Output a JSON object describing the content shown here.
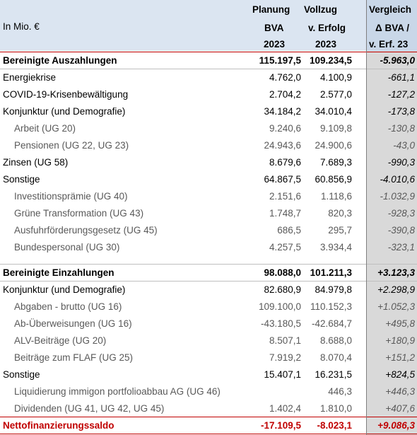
{
  "header": {
    "unit": "In Mio. €",
    "col1": [
      "Planung",
      "BVA",
      "2023"
    ],
    "col2": [
      "Vollzug",
      "v. Erfolg",
      "2023"
    ],
    "col3": [
      "Vergleich",
      "Δ BVA /",
      "v. Erf. 23"
    ]
  },
  "rows": [
    {
      "label": "Bereinigte Auszahlungen",
      "v1": "115.197,5",
      "v2": "109.234,5",
      "v3": "-5.963,0",
      "style": "bold"
    },
    {
      "label": "Energiekrise",
      "v1": "4.762,0",
      "v2": "4.100,9",
      "v3": "-661,1",
      "style": "main"
    },
    {
      "label": "COVID-19-Krisenbewältigung",
      "v1": "2.704,2",
      "v2": "2.577,0",
      "v3": "-127,2",
      "style": "main"
    },
    {
      "label": "Konjunktur (und Demografie)",
      "v1": "34.184,2",
      "v2": "34.010,4",
      "v3": "-173,8",
      "style": "main"
    },
    {
      "label": "Arbeit (UG 20)",
      "v1": "9.240,6",
      "v2": "9.109,8",
      "v3": "-130,8",
      "style": "sub"
    },
    {
      "label": "Pensionen (UG 22, UG 23)",
      "v1": "24.943,6",
      "v2": "24.900,6",
      "v3": "-43,0",
      "style": "sub"
    },
    {
      "label": "Zinsen (UG 58)",
      "v1": "8.679,6",
      "v2": "7.689,3",
      "v3": "-990,3",
      "style": "main"
    },
    {
      "label": "Sonstige",
      "v1": "64.867,5",
      "v2": "60.856,9",
      "v3": "-4.010,6",
      "style": "main"
    },
    {
      "label": "Investitionsprämie (UG 40)",
      "v1": "2.151,6",
      "v2": "1.118,6",
      "v3": "-1.032,9",
      "style": "sub"
    },
    {
      "label": "Grüne Transformation (UG 43)",
      "v1": "1.748,7",
      "v2": "820,3",
      "v3": "-928,3",
      "style": "sub"
    },
    {
      "label": "Ausfuhrförderungsgesetz (UG 45)",
      "v1": "686,5",
      "v2": "295,7",
      "v3": "-390,8",
      "style": "sub"
    },
    {
      "label": "Bundespersonal (UG 30)",
      "v1": "4.257,5",
      "v2": "3.934,4",
      "v3": "-323,1",
      "style": "sub"
    },
    {
      "label": "Bereinigte Einzahlungen",
      "v1": "98.088,0",
      "v2": "101.211,3",
      "v3": "+3.123,3",
      "style": "bold"
    },
    {
      "label": "Konjunktur (und Demografie)",
      "v1": "82.680,9",
      "v2": "84.979,8",
      "v3": "+2.298,9",
      "style": "main"
    },
    {
      "label": "Abgaben - brutto (UG 16)",
      "v1": "109.100,0",
      "v2": "110.152,3",
      "v3": "+1.052,3",
      "style": "sub"
    },
    {
      "label": "Ab-Überweisungen (UG 16)",
      "v1": "-43.180,5",
      "v2": "-42.684,7",
      "v3": "+495,8",
      "style": "sub"
    },
    {
      "label": "ALV-Beiträge (UG 20)",
      "v1": "8.507,1",
      "v2": "8.688,0",
      "v3": "+180,9",
      "style": "sub"
    },
    {
      "label": "Beiträge zum FLAF (UG 25)",
      "v1": "7.919,2",
      "v2": "8.070,4",
      "v3": "+151,2",
      "style": "sub"
    },
    {
      "label": "Sonstige",
      "v1": "15.407,1",
      "v2": "16.231,5",
      "v3": "+824,5",
      "style": "main"
    },
    {
      "label": "Liquidierung immigon portfolioabbau AG (UG 46)",
      "v1": "",
      "v2": "446,3",
      "v3": "+446,3",
      "style": "sub"
    },
    {
      "label": "Dividenden (UG 41, UG 42, UG 45)",
      "v1": "1.402,4",
      "v2": "1.810,0",
      "v3": "+407,6",
      "style": "sub"
    },
    {
      "label": "Nettofinanzierungssaldo",
      "v1": "-17.109,5",
      "v2": "-8.023,1",
      "v3": "+9.086,3",
      "style": "red"
    }
  ]
}
